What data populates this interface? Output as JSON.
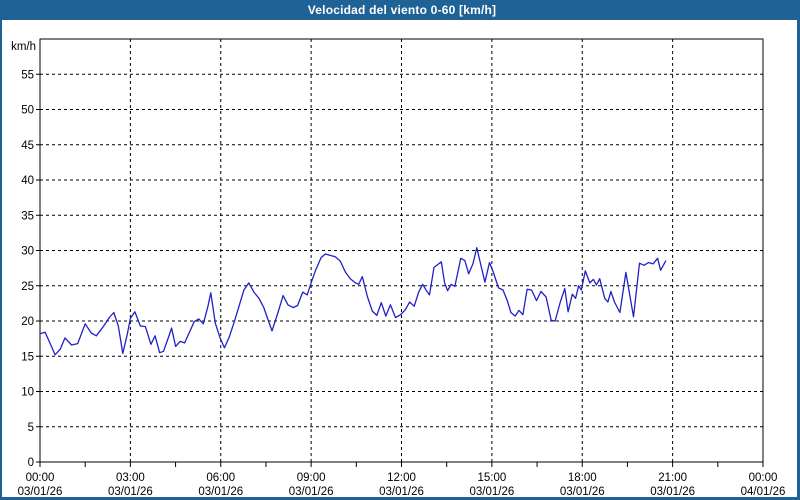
{
  "window": {
    "title": "Velocidad del viento 0-60 [km/h]"
  },
  "colors": {
    "titlebar_bg": "#1f6396",
    "window_border": "#1f6396",
    "content_bg": "#ffffff",
    "plot_bg": "#ffffff",
    "plot_border": "#000000",
    "grid": "#000000",
    "tick_text": "#000000",
    "line": "#2121c8",
    "title_text": "#ffffff"
  },
  "chart_data": {
    "type": "line",
    "title": "Velocidad del viento 0-60 [km/h]",
    "ylabel": "km/h",
    "ylim": [
      0,
      60
    ],
    "ytick_step": 5,
    "ytick_labels": [
      "0",
      "5",
      "10",
      "15",
      "20",
      "25",
      "30",
      "35",
      "40",
      "45",
      "50",
      "55"
    ],
    "xlim_hours": [
      0,
      24
    ],
    "xtick_major_step_hours": 3,
    "xtick_minor_step_hours": 1.5,
    "grid": true,
    "legend": "none",
    "x_major_labels": [
      {
        "time": "00:00",
        "date": "03/01/26"
      },
      {
        "time": "03:00",
        "date": "03/01/26"
      },
      {
        "time": "06:00",
        "date": "03/01/26"
      },
      {
        "time": "09:00",
        "date": "03/01/26"
      },
      {
        "time": "12:00",
        "date": "03/01/26"
      },
      {
        "time": "15:00",
        "date": "03/01/26"
      },
      {
        "time": "18:00",
        "date": "03/01/26"
      },
      {
        "time": "21:00",
        "date": "03/01/26"
      },
      {
        "time": "00:00",
        "date": "04/01/26"
      }
    ],
    "series": [
      {
        "name": "Velocidad del viento (km/h)",
        "color": "#2121c8",
        "points": [
          [
            0.0,
            18.2
          ],
          [
            0.17,
            18.4
          ],
          [
            0.33,
            16.9
          ],
          [
            0.5,
            15.2
          ],
          [
            0.67,
            16.0
          ],
          [
            0.83,
            17.6
          ],
          [
            1.05,
            16.6
          ],
          [
            1.25,
            16.8
          ],
          [
            1.5,
            19.6
          ],
          [
            1.7,
            18.3
          ],
          [
            1.87,
            17.9
          ],
          [
            2.1,
            19.2
          ],
          [
            2.3,
            20.5
          ],
          [
            2.45,
            21.2
          ],
          [
            2.6,
            19.3
          ],
          [
            2.75,
            15.4
          ],
          [
            2.9,
            18.2
          ],
          [
            3.0,
            20.4
          ],
          [
            3.15,
            21.3
          ],
          [
            3.33,
            19.3
          ],
          [
            3.5,
            19.2
          ],
          [
            3.68,
            16.7
          ],
          [
            3.82,
            17.9
          ],
          [
            3.97,
            15.5
          ],
          [
            4.1,
            15.7
          ],
          [
            4.25,
            17.5
          ],
          [
            4.37,
            19.0
          ],
          [
            4.5,
            16.4
          ],
          [
            4.65,
            17.1
          ],
          [
            4.8,
            16.9
          ],
          [
            4.95,
            18.3
          ],
          [
            5.12,
            19.9
          ],
          [
            5.27,
            20.3
          ],
          [
            5.42,
            19.6
          ],
          [
            5.57,
            22.0
          ],
          [
            5.67,
            24.0
          ],
          [
            5.82,
            19.7
          ],
          [
            5.97,
            17.7
          ],
          [
            6.12,
            16.2
          ],
          [
            6.28,
            17.7
          ],
          [
            6.45,
            19.9
          ],
          [
            6.6,
            22.0
          ],
          [
            6.77,
            24.4
          ],
          [
            6.93,
            25.4
          ],
          [
            7.1,
            24.1
          ],
          [
            7.27,
            23.2
          ],
          [
            7.43,
            21.9
          ],
          [
            7.57,
            20.2
          ],
          [
            7.7,
            18.6
          ],
          [
            7.9,
            21.2
          ],
          [
            8.07,
            23.6
          ],
          [
            8.23,
            22.3
          ],
          [
            8.4,
            21.9
          ],
          [
            8.55,
            22.2
          ],
          [
            8.72,
            24.1
          ],
          [
            8.87,
            23.7
          ],
          [
            9.0,
            25.4
          ],
          [
            9.15,
            27.2
          ],
          [
            9.33,
            29.0
          ],
          [
            9.47,
            29.5
          ],
          [
            9.63,
            29.3
          ],
          [
            9.8,
            29.1
          ],
          [
            9.97,
            28.5
          ],
          [
            10.13,
            27.0
          ],
          [
            10.3,
            26.0
          ],
          [
            10.47,
            25.4
          ],
          [
            10.58,
            25.2
          ],
          [
            10.7,
            26.3
          ],
          [
            10.87,
            23.4
          ],
          [
            11.03,
            21.4
          ],
          [
            11.18,
            20.8
          ],
          [
            11.33,
            22.6
          ],
          [
            11.48,
            20.7
          ],
          [
            11.63,
            22.3
          ],
          [
            11.8,
            20.5
          ],
          [
            11.97,
            20.9
          ],
          [
            12.13,
            21.6
          ],
          [
            12.27,
            22.7
          ],
          [
            12.42,
            22.1
          ],
          [
            12.57,
            24.1
          ],
          [
            12.7,
            25.2
          ],
          [
            12.83,
            24.3
          ],
          [
            12.93,
            23.7
          ],
          [
            13.08,
            27.6
          ],
          [
            13.2,
            28.0
          ],
          [
            13.32,
            28.4
          ],
          [
            13.43,
            25.4
          ],
          [
            13.53,
            24.3
          ],
          [
            13.65,
            25.2
          ],
          [
            13.77,
            24.9
          ],
          [
            13.97,
            28.9
          ],
          [
            14.1,
            28.6
          ],
          [
            14.23,
            26.7
          ],
          [
            14.37,
            28.1
          ],
          [
            14.5,
            30.4
          ],
          [
            14.67,
            27.3
          ],
          [
            14.77,
            25.5
          ],
          [
            14.92,
            28.3
          ],
          [
            15.05,
            26.9
          ],
          [
            15.22,
            24.7
          ],
          [
            15.37,
            24.4
          ],
          [
            15.52,
            22.8
          ],
          [
            15.63,
            21.2
          ],
          [
            15.77,
            20.7
          ],
          [
            15.9,
            21.5
          ],
          [
            16.03,
            20.9
          ],
          [
            16.17,
            24.5
          ],
          [
            16.32,
            24.4
          ],
          [
            16.48,
            22.9
          ],
          [
            16.63,
            24.2
          ],
          [
            16.8,
            23.4
          ],
          [
            16.97,
            20.1
          ],
          [
            17.1,
            20.0
          ],
          [
            17.27,
            22.7
          ],
          [
            17.42,
            24.6
          ],
          [
            17.53,
            21.3
          ],
          [
            17.67,
            23.8
          ],
          [
            17.78,
            23.2
          ],
          [
            17.88,
            25.0
          ],
          [
            17.97,
            24.4
          ],
          [
            18.1,
            27.1
          ],
          [
            18.25,
            25.4
          ],
          [
            18.37,
            25.9
          ],
          [
            18.47,
            25.1
          ],
          [
            18.58,
            26.0
          ],
          [
            18.75,
            23.2
          ],
          [
            18.85,
            22.7
          ],
          [
            18.95,
            24.2
          ],
          [
            19.07,
            22.7
          ],
          [
            19.25,
            21.2
          ],
          [
            19.45,
            26.9
          ],
          [
            19.7,
            20.6
          ],
          [
            19.9,
            28.2
          ],
          [
            20.05,
            27.9
          ],
          [
            20.2,
            28.3
          ],
          [
            20.35,
            28.1
          ],
          [
            20.5,
            28.9
          ],
          [
            20.6,
            27.2
          ],
          [
            20.77,
            28.5
          ]
        ]
      }
    ]
  }
}
